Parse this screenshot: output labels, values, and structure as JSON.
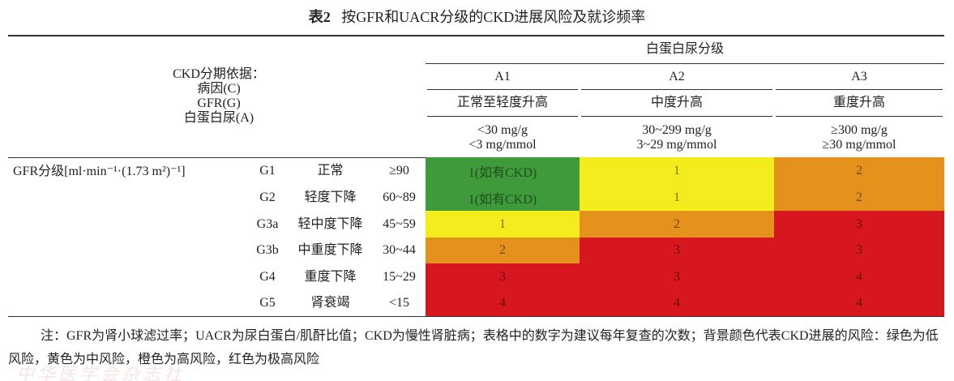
{
  "title": {
    "label": "表2",
    "text": "按GFR和UACR分级的CKD进展风险及就诊频率"
  },
  "header": {
    "basis": [
      "CKD分期依据：",
      "病因(C)",
      "GFR(G)",
      "白蛋白尿(A)"
    ],
    "albuminuria": "白蛋白尿分级",
    "columns": [
      {
        "code": "A1",
        "desc": "正常至轻度升高",
        "range": [
          "<30 mg/g",
          "<3 mg/mmol"
        ]
      },
      {
        "code": "A2",
        "desc": "中度升高",
        "range": [
          "30~299 mg/g",
          "3~29 mg/mmol"
        ]
      },
      {
        "code": "A3",
        "desc": "重度升高",
        "range": [
          "≥300 mg/g",
          "≥30 mg/mmol"
        ]
      }
    ]
  },
  "gfr_label": "GFR分级[ml·min⁻¹·(1.73 m²)⁻¹]",
  "rows": [
    {
      "grade": "G1",
      "name": "正常",
      "range": "≥90",
      "cells": [
        "1(如有CKD)",
        "1",
        "2"
      ],
      "colors": [
        "#3e9a3b",
        "#f5ec1d",
        "#e5921d"
      ]
    },
    {
      "grade": "G2",
      "name": "轻度下降",
      "range": "60~89",
      "cells": [
        "1(如有CKD)",
        "1",
        "2"
      ],
      "colors": [
        "#3e9a3b",
        "#f5ec1d",
        "#e5921d"
      ]
    },
    {
      "grade": "G3a",
      "name": "轻中度下降",
      "range": "45~59",
      "cells": [
        "1",
        "2",
        "3"
      ],
      "colors": [
        "#f5ec1d",
        "#e5921d",
        "#d7171f"
      ]
    },
    {
      "grade": "G3b",
      "name": "中重度下降",
      "range": "30~44",
      "cells": [
        "2",
        "3",
        "3"
      ],
      "colors": [
        "#e5921d",
        "#d7171f",
        "#d7171f"
      ]
    },
    {
      "grade": "G4",
      "name": "重度下降",
      "range": "15~29",
      "cells": [
        "3",
        "3",
        "4"
      ],
      "colors": [
        "#d7171f",
        "#d7171f",
        "#d7171f"
      ]
    },
    {
      "grade": "G5",
      "name": "肾衰竭",
      "range": "<15",
      "cells": [
        "4",
        "4",
        "4"
      ],
      "colors": [
        "#d7171f",
        "#d7171f",
        "#d7171f"
      ]
    }
  ],
  "note": "注：GFR为肾小球滤过率；UACR为尿白蛋白/肌酐比值；CKD为慢性肾脏病；表格中的数字为建议每年复查的次数；背景颜色代表CKD进展的风险：绿色为低风险，黄色为中风险，橙色为高风险，红色为极高风险",
  "watermark": "中华医学会杂志社"
}
